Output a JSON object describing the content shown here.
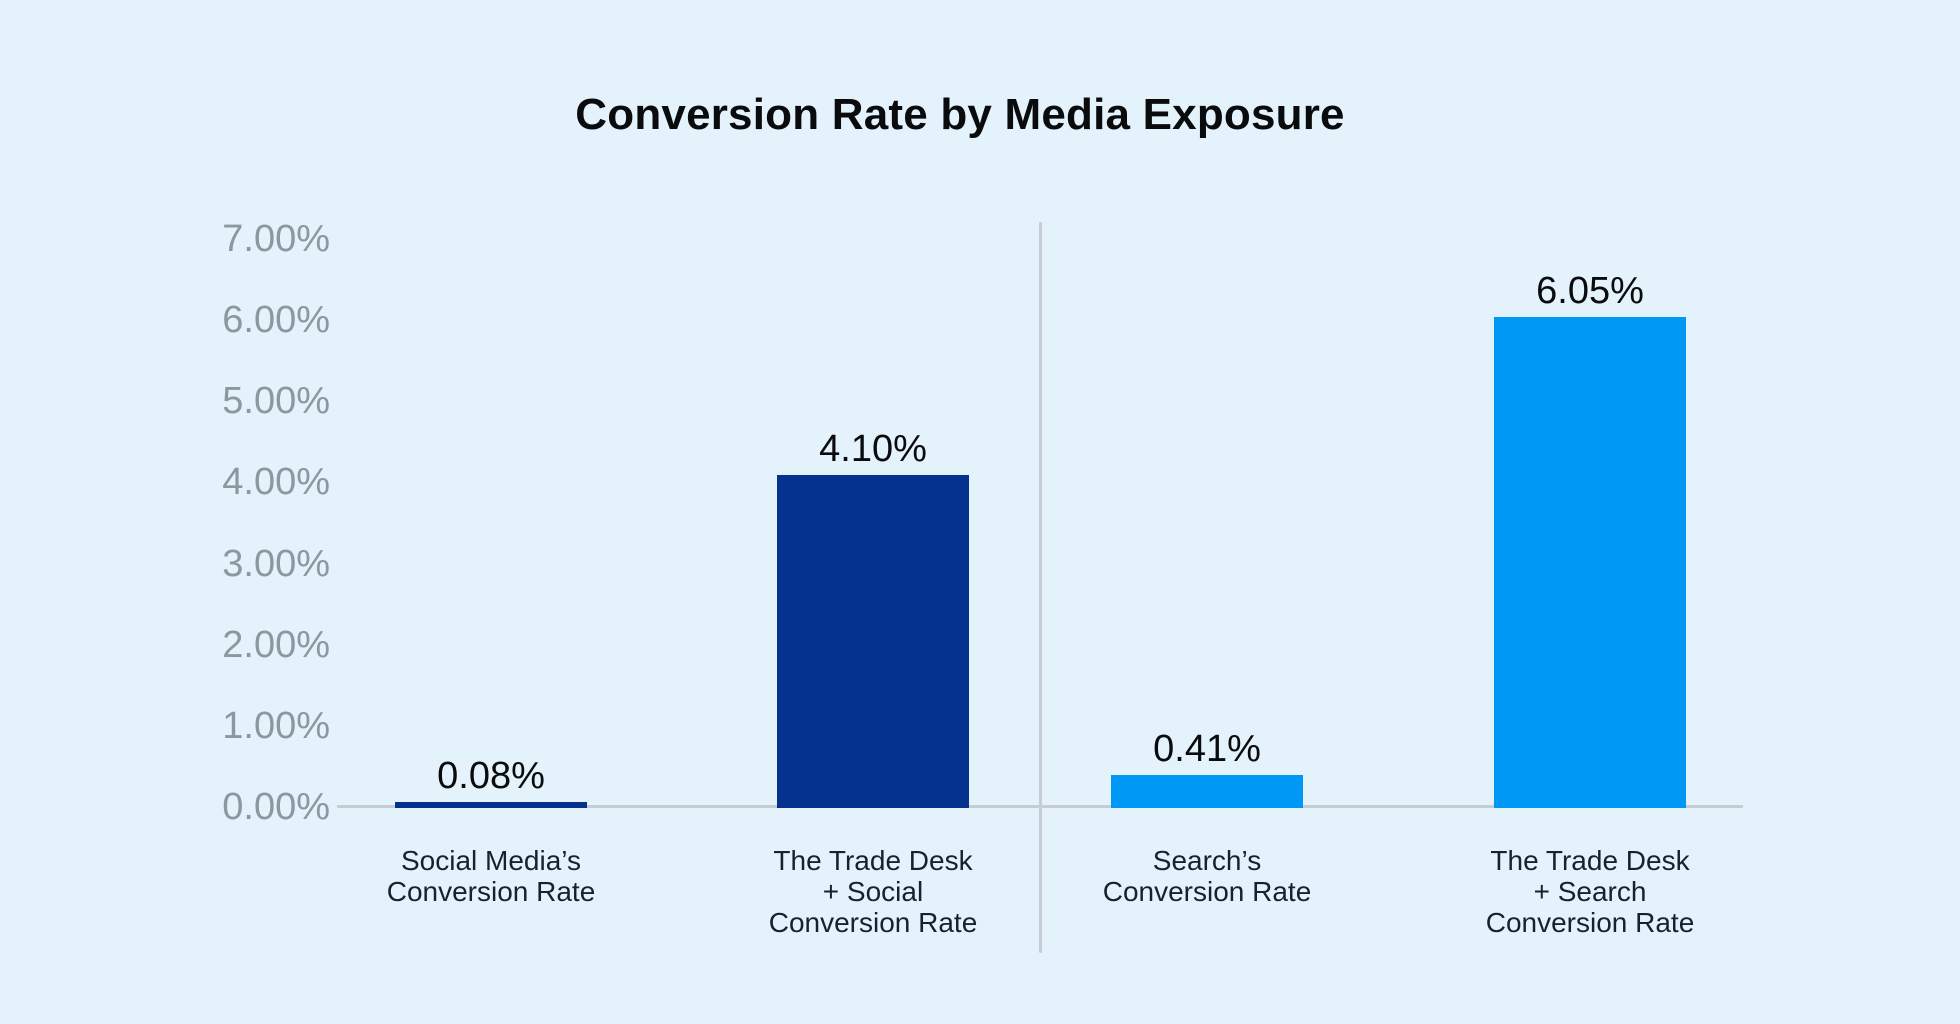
{
  "chart_data": {
    "type": "bar",
    "title": "Conversion Rate by Media Exposure",
    "xlabel": "",
    "ylabel": "",
    "ylim": [
      0,
      7
    ],
    "grid": false,
    "legend": false,
    "values": [
      0.08,
      4.1,
      0.41,
      6.05
    ],
    "categories": [
      {
        "id": "social-media-conversion-rate",
        "lines": [
          "Social Media’s",
          "Conversion Rate"
        ],
        "value": 0.08,
        "value_label": "0.08%",
        "color": "#05318F",
        "group": "social"
      },
      {
        "id": "trade-desk-plus-social-conversion-rate",
        "lines": [
          "The Trade Desk",
          "+ Social",
          "Conversion Rate"
        ],
        "value": 4.1,
        "value_label": "4.10%",
        "color": "#05318F",
        "group": "social"
      },
      {
        "id": "search-conversion-rate",
        "lines": [
          "Search’s",
          "Conversion Rate"
        ],
        "value": 0.41,
        "value_label": "0.41%",
        "color": "#0098F5",
        "group": "search"
      },
      {
        "id": "trade-desk-plus-search-conversion-rate",
        "lines": [
          "The Trade Desk",
          "+ Search",
          "Conversion Rate"
        ],
        "value": 6.05,
        "value_label": "6.05%",
        "color": "#0098F5",
        "group": "search"
      }
    ],
    "y_axis": {
      "ticks": [
        {
          "value": 0,
          "label": "0.00%"
        },
        {
          "value": 1,
          "label": "1.00%"
        },
        {
          "value": 2,
          "label": "2.00%"
        },
        {
          "value": 3,
          "label": "3.00%"
        },
        {
          "value": 4,
          "label": "4.00%"
        },
        {
          "value": 5,
          "label": "5.00%"
        },
        {
          "value": 6,
          "label": "6.00%"
        },
        {
          "value": 7,
          "label": "7.00%"
        }
      ]
    }
  },
  "colors": {
    "background": "#E4F2FC",
    "axis_line": "#C7CDD2",
    "divider_line": "#C7CDD2",
    "tick_label": "#8D979F",
    "category_label": "#18222D",
    "title": "#0A0B0C",
    "value_label": "#0A0B0C",
    "navy_bar": "#05318F",
    "light_blue_bar": "#0098F5"
  }
}
